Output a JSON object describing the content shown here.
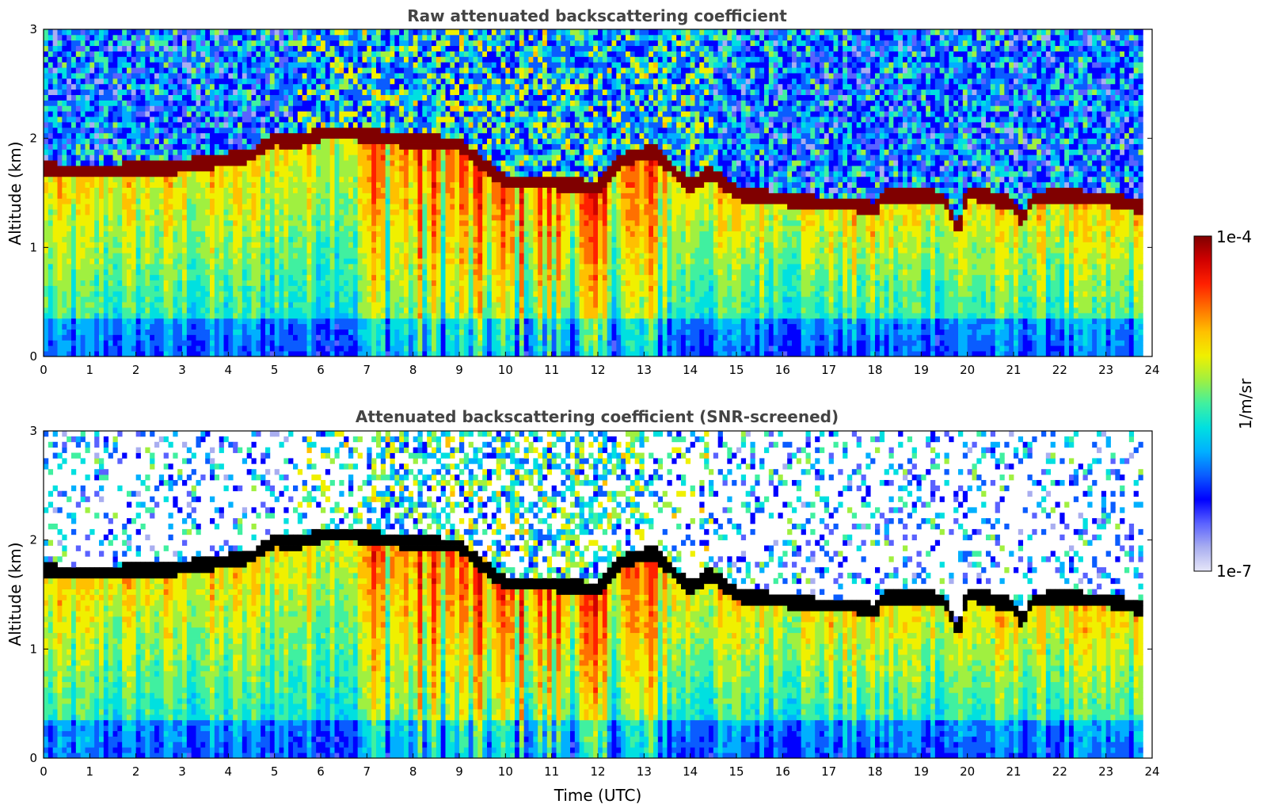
{
  "chart_data": [
    {
      "type": "heatmap",
      "title": "Raw attenuated backscattering coefficient",
      "xlabel": "",
      "ylabel": "Altitude (km)",
      "xlim": [
        0,
        24
      ],
      "ylim": [
        0,
        3
      ],
      "xticks": [
        "0",
        "1",
        "2",
        "3",
        "4",
        "5",
        "6",
        "7",
        "8",
        "9",
        "10",
        "11",
        "12",
        "13",
        "14",
        "15",
        "16",
        "17",
        "18",
        "19",
        "20",
        "21",
        "22",
        "23",
        "24"
      ],
      "yticks": [
        "0",
        "1",
        "2",
        "3"
      ],
      "snr_screened": false,
      "cloud_top_km": [
        [
          0.0,
          1.72
        ],
        [
          1.0,
          1.7
        ],
        [
          2.0,
          1.72
        ],
        [
          2.5,
          1.72
        ],
        [
          3.5,
          1.78
        ],
        [
          4.5,
          1.85
        ],
        [
          5.0,
          2.0
        ],
        [
          5.5,
          1.98
        ],
        [
          6.0,
          2.05
        ],
        [
          6.7,
          2.05
        ],
        [
          7.5,
          2.0
        ],
        [
          8.3,
          1.98
        ],
        [
          9.0,
          1.95
        ],
        [
          10.0,
          1.6
        ],
        [
          11.0,
          1.6
        ],
        [
          12.0,
          1.55
        ],
        [
          12.5,
          1.8
        ],
        [
          13.2,
          1.9
        ],
        [
          14.0,
          1.55
        ],
        [
          14.4,
          1.7
        ],
        [
          15.0,
          1.5
        ],
        [
          16.0,
          1.45
        ],
        [
          17.0,
          1.4
        ],
        [
          17.5,
          1.4
        ],
        [
          18.0,
          1.35
        ],
        [
          18.2,
          1.48
        ],
        [
          19.0,
          1.48
        ],
        [
          19.5,
          1.45
        ],
        [
          19.8,
          1.15
        ],
        [
          20.0,
          1.52
        ],
        [
          21.0,
          1.4
        ],
        [
          21.2,
          1.25
        ],
        [
          21.4,
          1.45
        ],
        [
          22.0,
          1.48
        ],
        [
          23.0,
          1.45
        ],
        [
          23.8,
          1.38
        ]
      ]
    },
    {
      "type": "heatmap",
      "title": "Attenuated backscattering coefficient (SNR-screened)",
      "xlabel": "Time (UTC)",
      "ylabel": "Altitude (km)",
      "xlim": [
        0,
        24
      ],
      "ylim": [
        0,
        3
      ],
      "xticks": [
        "0",
        "1",
        "2",
        "3",
        "4",
        "5",
        "6",
        "7",
        "8",
        "9",
        "10",
        "11",
        "12",
        "13",
        "14",
        "15",
        "16",
        "17",
        "18",
        "19",
        "20",
        "21",
        "22",
        "23",
        "24"
      ],
      "yticks": [
        "0",
        "1",
        "2",
        "3"
      ],
      "snr_screened": true,
      "cloud_top_km": [
        [
          0.0,
          1.72
        ],
        [
          1.0,
          1.7
        ],
        [
          2.0,
          1.72
        ],
        [
          2.5,
          1.72
        ],
        [
          3.5,
          1.78
        ],
        [
          4.5,
          1.85
        ],
        [
          5.0,
          2.0
        ],
        [
          5.5,
          1.98
        ],
        [
          6.0,
          2.05
        ],
        [
          6.7,
          2.05
        ],
        [
          7.5,
          2.0
        ],
        [
          8.3,
          1.98
        ],
        [
          9.0,
          1.95
        ],
        [
          10.0,
          1.6
        ],
        [
          11.0,
          1.6
        ],
        [
          12.0,
          1.55
        ],
        [
          12.5,
          1.8
        ],
        [
          13.2,
          1.9
        ],
        [
          14.0,
          1.55
        ],
        [
          14.4,
          1.7
        ],
        [
          15.0,
          1.5
        ],
        [
          16.0,
          1.45
        ],
        [
          17.0,
          1.4
        ],
        [
          17.5,
          1.4
        ],
        [
          18.0,
          1.35
        ],
        [
          18.2,
          1.48
        ],
        [
          19.0,
          1.48
        ],
        [
          19.5,
          1.45
        ],
        [
          19.8,
          1.15
        ],
        [
          20.0,
          1.52
        ],
        [
          21.0,
          1.4
        ],
        [
          21.2,
          1.25
        ],
        [
          21.4,
          1.45
        ],
        [
          22.0,
          1.48
        ],
        [
          23.0,
          1.45
        ],
        [
          23.8,
          1.38
        ]
      ]
    }
  ],
  "colorbar": {
    "label": "1/m/sr",
    "max_label": "1e-4",
    "min_label": "1e-7",
    "scale": "log",
    "colormap": [
      "#e6e6f8",
      "#a9aef0",
      "#5a62ff",
      "#0000ff",
      "#0a5cff",
      "#00b0ff",
      "#00e0e0",
      "#40f0a0",
      "#a0f040",
      "#f0f000",
      "#ffc000",
      "#ff7000",
      "#ff2000",
      "#d00000",
      "#800000"
    ]
  }
}
